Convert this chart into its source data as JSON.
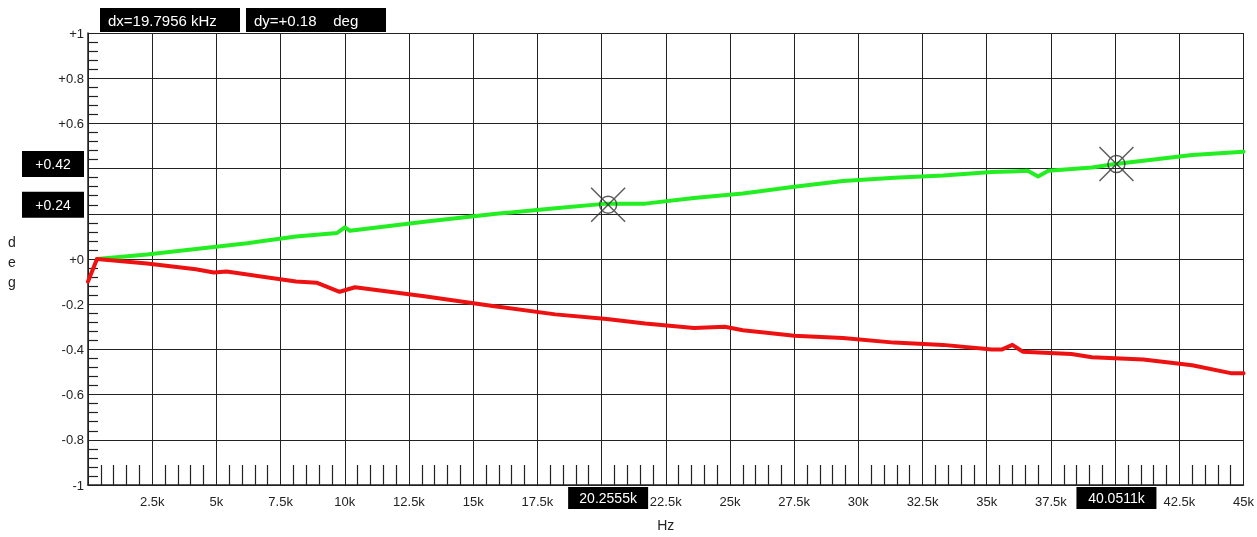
{
  "chart_data": {
    "type": "line",
    "xlabel": "Hz",
    "ylabel": "deg",
    "xlim": [
      0,
      45000
    ],
    "ylim": [
      -1,
      1
    ],
    "xticks": [
      {
        "value": 0,
        "label": null
      },
      {
        "value": 2500,
        "label": "2.5k"
      },
      {
        "value": 5000,
        "label": "5k"
      },
      {
        "value": 7500,
        "label": "7.5k"
      },
      {
        "value": 10000,
        "label": "10k"
      },
      {
        "value": 12500,
        "label": "12.5k"
      },
      {
        "value": 15000,
        "label": "15k"
      },
      {
        "value": 17500,
        "label": "17.5k"
      },
      {
        "value": 20000,
        "label": null
      },
      {
        "value": 22500,
        "label": "22.5k"
      },
      {
        "value": 25000,
        "label": "25k"
      },
      {
        "value": 27500,
        "label": "27.5k"
      },
      {
        "value": 30000,
        "label": "30k"
      },
      {
        "value": 32500,
        "label": "32.5k"
      },
      {
        "value": 35000,
        "label": "35k"
      },
      {
        "value": 37500,
        "label": "37.5k"
      },
      {
        "value": 40000,
        "label": null
      },
      {
        "value": 42500,
        "label": "42.5k"
      },
      {
        "value": 45000,
        "label": "45k"
      }
    ],
    "yticks": [
      {
        "value": -1,
        "label": "-1"
      },
      {
        "value": -0.8,
        "label": "-0.8"
      },
      {
        "value": -0.6,
        "label": "-0.6"
      },
      {
        "value": -0.4,
        "label": "-0.4"
      },
      {
        "value": -0.2,
        "label": "-0.2"
      },
      {
        "value": 0,
        "label": "+0"
      },
      {
        "value": 0.2,
        "label": null
      },
      {
        "value": 0.4,
        "label": null
      },
      {
        "value": 0.6,
        "label": "+0.6"
      },
      {
        "value": 0.8,
        "label": "+0.8"
      },
      {
        "value": 1,
        "label": "+1"
      }
    ],
    "grid": true,
    "series": [
      {
        "color": "#22ee22",
        "x": [
          350,
          2300,
          6200,
          8100,
          9700,
          10000,
          10200,
          13100,
          15900,
          18200,
          20200,
          21700,
          23600,
          25500,
          27500,
          29400,
          31400,
          33300,
          35200,
          36600,
          37000,
          37400,
          39100,
          40000,
          41100,
          43000,
          45000
        ],
        "values": [
          0,
          0.02,
          0.07,
          0.1,
          0.115,
          0.14,
          0.125,
          0.165,
          0.2,
          0.225,
          0.245,
          0.245,
          0.27,
          0.29,
          0.32,
          0.345,
          0.36,
          0.37,
          0.385,
          0.39,
          0.365,
          0.39,
          0.405,
          0.42,
          0.435,
          0.46,
          0.475
        ]
      },
      {
        "color": "#ee1111",
        "x": [
          0,
          350,
          2300,
          4200,
          4900,
          5400,
          8100,
          8900,
          9800,
          10400,
          13100,
          15900,
          18200,
          20200,
          21700,
          23600,
          24800,
          25500,
          27500,
          29400,
          31400,
          33300,
          35200,
          35600,
          36000,
          36400,
          38300,
          39100,
          41100,
          43000,
          44500,
          45000
        ],
        "values": [
          -0.1,
          0,
          -0.02,
          -0.045,
          -0.06,
          -0.055,
          -0.1,
          -0.105,
          -0.145,
          -0.125,
          -0.165,
          -0.21,
          -0.245,
          -0.265,
          -0.285,
          -0.305,
          -0.3,
          -0.315,
          -0.34,
          -0.35,
          -0.37,
          -0.38,
          -0.4,
          -0.4,
          -0.38,
          -0.41,
          -0.42,
          -0.435,
          -0.445,
          -0.47,
          -0.505,
          -0.505
        ]
      },
      {
        "type": "scatter",
        "marker": "cross",
        "color": "#333333",
        "x": [
          20255.5,
          40051.1
        ],
        "values": [
          0.24,
          0.42
        ]
      }
    ],
    "annotations": [
      "dx=19.7956 kHz",
      "dy=+0.18    deg",
      "+0.24",
      "20.2555k",
      "+0.42",
      "40.0511k"
    ]
  }
}
